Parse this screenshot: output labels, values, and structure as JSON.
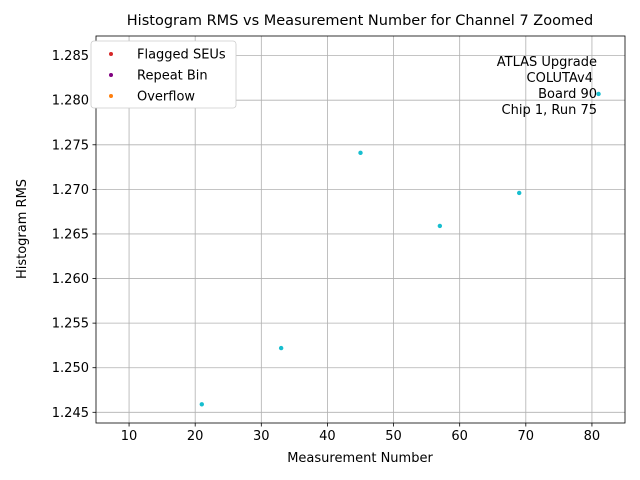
{
  "chart_data": {
    "type": "scatter",
    "title": "Histogram RMS vs Measurement Number for Channel 7 Zoomed",
    "xlabel": "Measurement Number",
    "ylabel": "Histogram RMS",
    "xlim": [
      5,
      85
    ],
    "ylim": [
      1.2438,
      1.2872
    ],
    "xticks": [
      10,
      20,
      30,
      40,
      50,
      60,
      70,
      80
    ],
    "xtick_labels": [
      "10",
      "20",
      "30",
      "40",
      "50",
      "60",
      "70",
      "80"
    ],
    "yticks": [
      1.245,
      1.25,
      1.255,
      1.26,
      1.265,
      1.27,
      1.275,
      1.28,
      1.285
    ],
    "ytick_labels": [
      "1.245",
      "1.250",
      "1.255",
      "1.260",
      "1.265",
      "1.270",
      "1.275",
      "1.280",
      "1.285"
    ],
    "grid": true,
    "legend_position": "top-left",
    "series": [
      {
        "name": "Data",
        "color": "#17becf",
        "x": [
          21,
          33,
          45,
          57,
          69,
          81
        ],
        "y": [
          1.2459,
          1.2522,
          1.2741,
          1.2659,
          1.2696,
          1.2807
        ]
      }
    ],
    "legend": [
      {
        "label": "Flagged SEUs",
        "color": "#d62728"
      },
      {
        "label": "Repeat Bin",
        "color": "#800080"
      },
      {
        "label": "Overflow",
        "color": "#ff7f0e"
      }
    ],
    "annotation_lines": [
      "ATLAS Upgrade",
      "COLUTAv4",
      "Board 90",
      "Chip 1, Run 75"
    ]
  }
}
